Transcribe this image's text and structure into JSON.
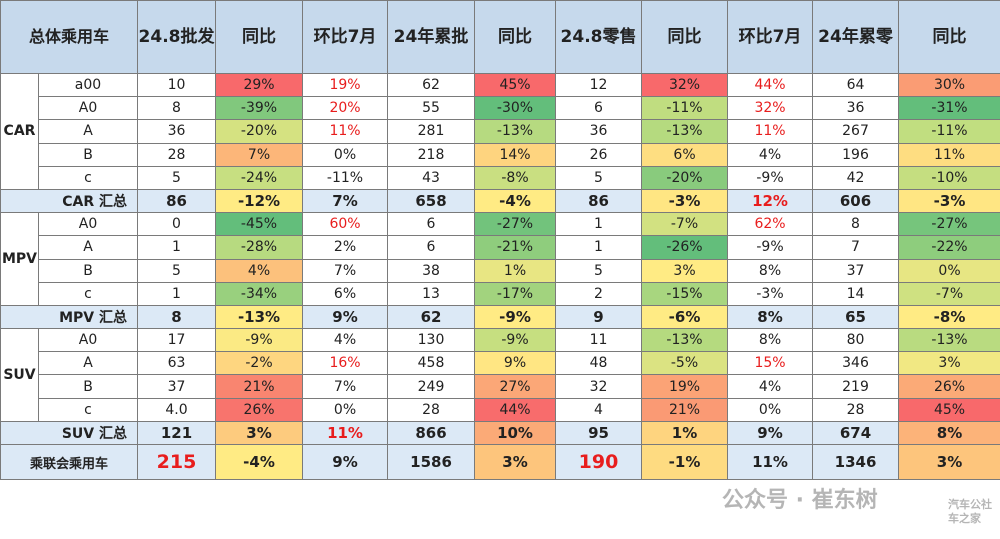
{
  "headers": [
    "总体乘用车",
    "24.8批发",
    "同比",
    "环比7月",
    "24年累批",
    "同比",
    "24.8零售",
    "同比",
    "环比7月",
    "24年累零",
    "同比"
  ],
  "groups": [
    {
      "name": "CAR",
      "rows": [
        {
          "seg": "a00",
          "cells": [
            "10",
            "29%",
            "19%",
            "62",
            "45%",
            "12",
            "32%",
            "44%",
            "64",
            "30%"
          ]
        },
        {
          "seg": "A0",
          "cells": [
            "8",
            "-39%",
            "20%",
            "55",
            "-30%",
            "6",
            "-11%",
            "32%",
            "36",
            "-31%"
          ]
        },
        {
          "seg": "A",
          "cells": [
            "36",
            "-20%",
            "11%",
            "281",
            "-13%",
            "36",
            "-13%",
            "11%",
            "267",
            "-11%"
          ]
        },
        {
          "seg": "B",
          "cells": [
            "28",
            "7%",
            "0%",
            "218",
            "14%",
            "26",
            "6%",
            "4%",
            "196",
            "11%"
          ]
        },
        {
          "seg": "c",
          "cells": [
            "5",
            "-24%",
            "-11%",
            "43",
            "-8%",
            "5",
            "-20%",
            "-9%",
            "42",
            "-10%"
          ]
        }
      ],
      "summary": {
        "label": "CAR 汇总",
        "cells": [
          "86",
          "-12%",
          "7%",
          "658",
          "-4%",
          "86",
          "-3%",
          "12%",
          "606",
          "-3%"
        ]
      }
    },
    {
      "name": "MPV",
      "rows": [
        {
          "seg": "A0",
          "cells": [
            "0",
            "-45%",
            "60%",
            "6",
            "-27%",
            "1",
            "-7%",
            "62%",
            "8",
            "-27%"
          ]
        },
        {
          "seg": "A",
          "cells": [
            "1",
            "-28%",
            "2%",
            "6",
            "-21%",
            "1",
            "-26%",
            "-9%",
            "7",
            "-22%"
          ]
        },
        {
          "seg": "B",
          "cells": [
            "5",
            "4%",
            "7%",
            "38",
            "1%",
            "5",
            "3%",
            "8%",
            "37",
            "0%"
          ]
        },
        {
          "seg": "c",
          "cells": [
            "1",
            "-34%",
            "6%",
            "13",
            "-17%",
            "2",
            "-15%",
            "-3%",
            "14",
            "-7%"
          ]
        }
      ],
      "summary": {
        "label": "MPV 汇总",
        "cells": [
          "8",
          "-13%",
          "9%",
          "62",
          "-9%",
          "9",
          "-6%",
          "8%",
          "65",
          "-8%"
        ]
      }
    },
    {
      "name": "SUV",
      "rows": [
        {
          "seg": "A0",
          "cells": [
            "17",
            "-9%",
            "4%",
            "130",
            "-9%",
            "11",
            "-13%",
            "8%",
            "80",
            "-13%"
          ]
        },
        {
          "seg": "A",
          "cells": [
            "63",
            "-2%",
            "16%",
            "458",
            "9%",
            "48",
            "-5%",
            "15%",
            "346",
            "3%"
          ]
        },
        {
          "seg": "B",
          "cells": [
            "37",
            "21%",
            "7%",
            "249",
            "27%",
            "32",
            "19%",
            "4%",
            "219",
            "26%"
          ]
        },
        {
          "seg": "c",
          "cells": [
            "4.0",
            "26%",
            "0%",
            "28",
            "44%",
            "4",
            "21%",
            "0%",
            "28",
            "45%"
          ]
        }
      ],
      "summary": {
        "label": "SUV 汇总",
        "cells": [
          "121",
          "3%",
          "11%",
          "866",
          "10%",
          "95",
          "1%",
          "9%",
          "674",
          "8%"
        ]
      }
    }
  ],
  "total": {
    "label": "乘联会乘用车",
    "cells": [
      "215",
      "-4%",
      "9%",
      "1586",
      "3%",
      "190",
      "-1%",
      "11%",
      "1346",
      "3%"
    ]
  },
  "watermark": {
    "main": "公众号 · 崔东树",
    "corner": "汽车公社\n车之家"
  },
  "colors": {
    "red_text": "#e81d1d",
    "header_bg": "#c6d9ec",
    "summary_bg": "#dce9f6"
  }
}
